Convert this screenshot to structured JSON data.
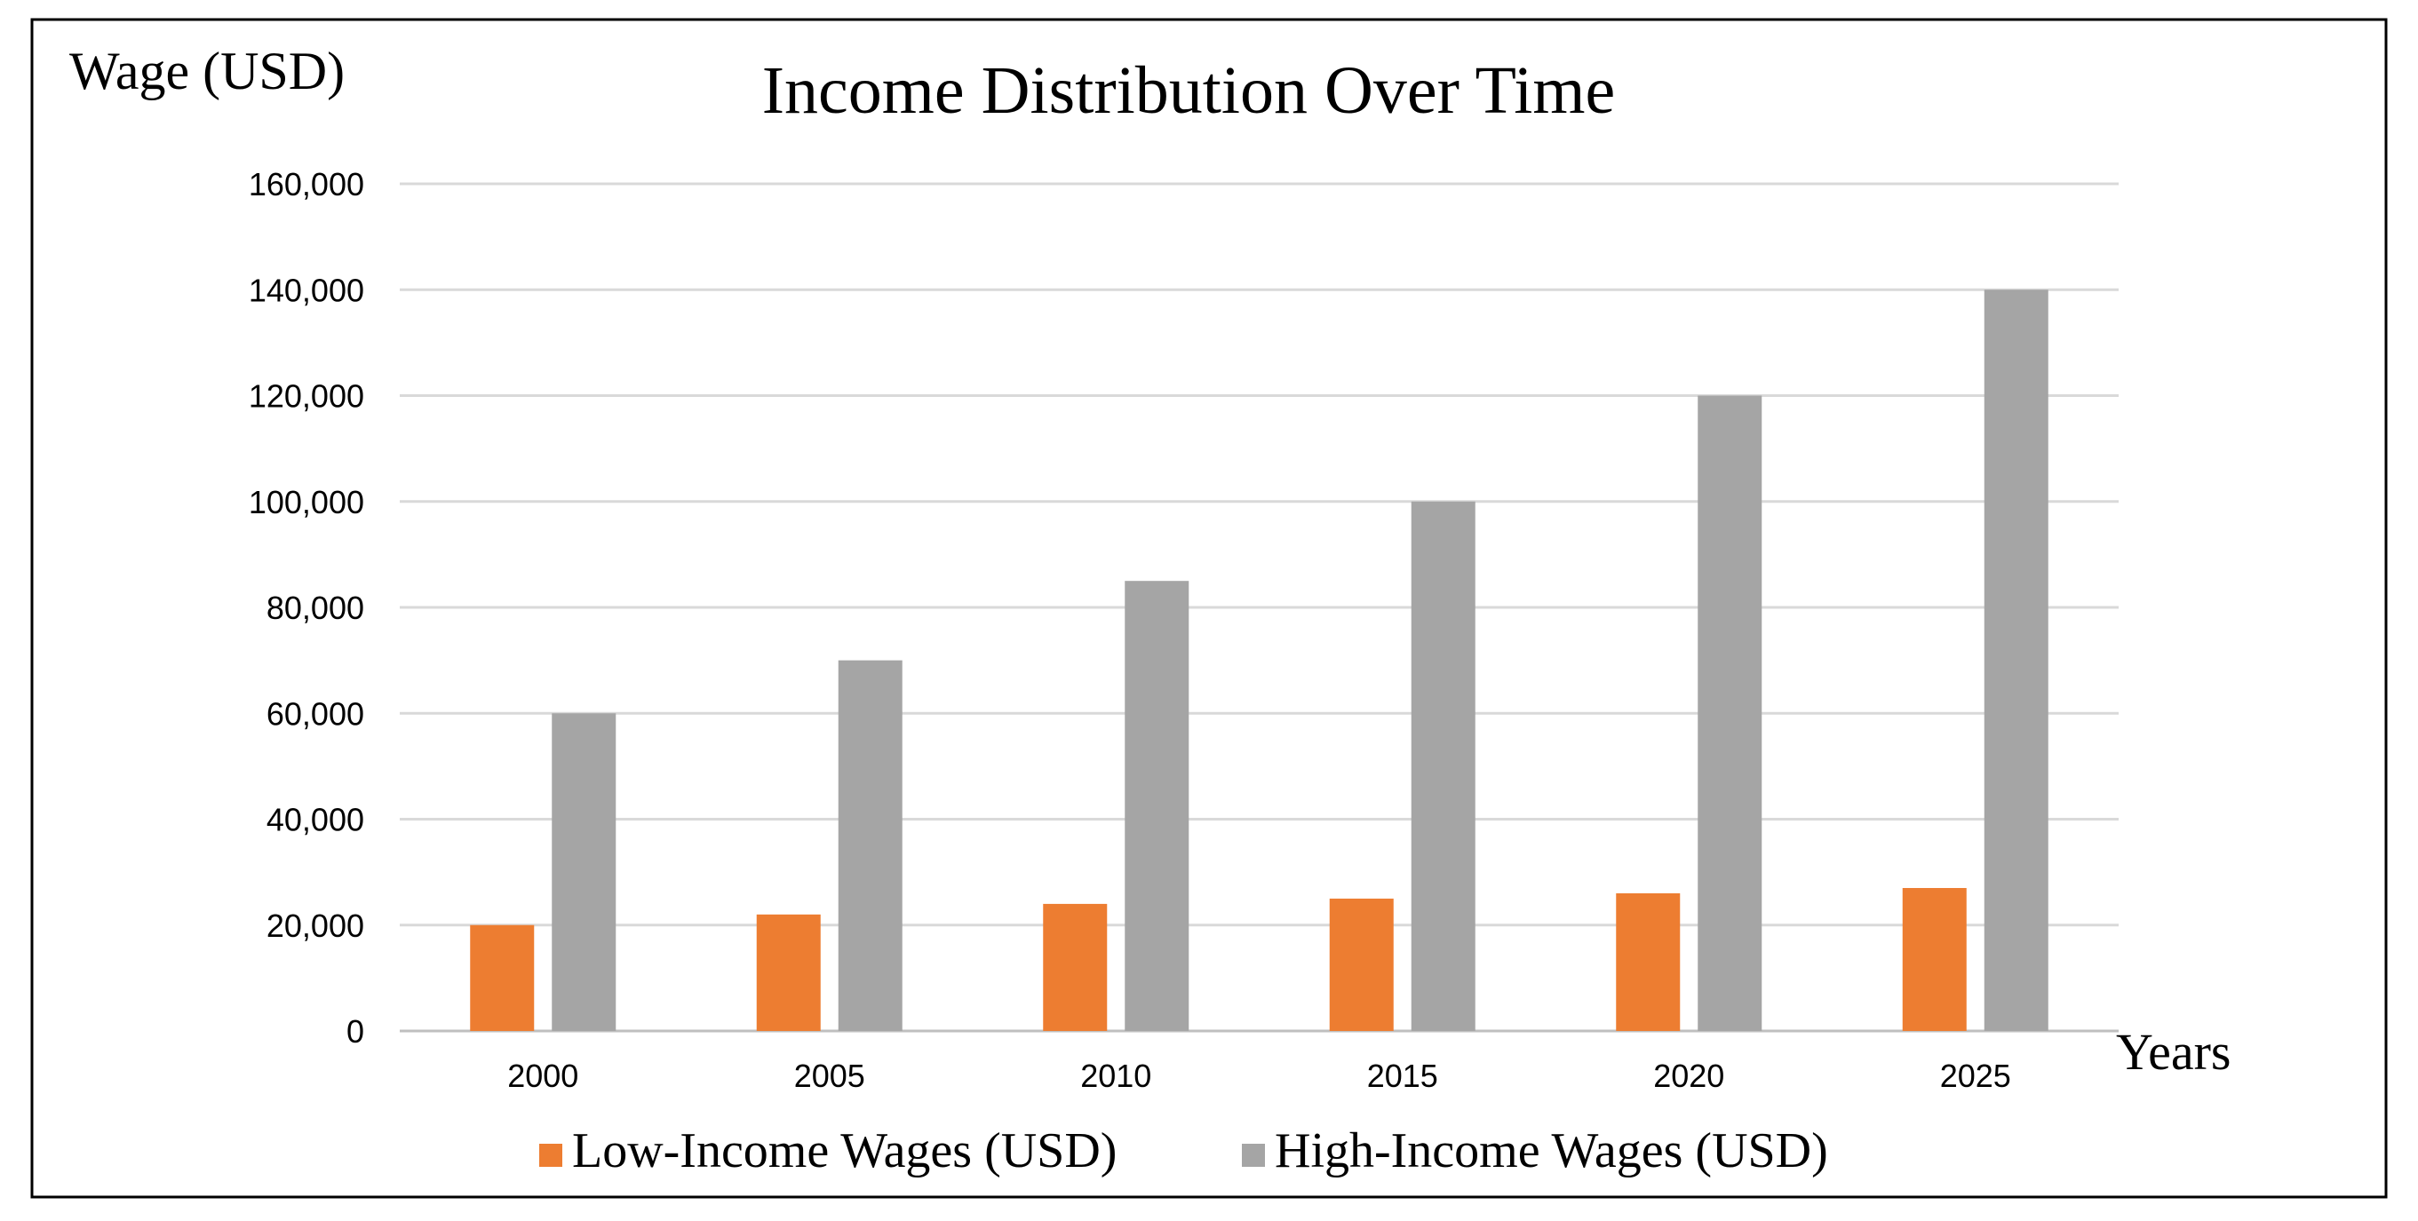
{
  "chart_data": {
    "type": "bar",
    "title": "Income Distribution Over Time",
    "ylabel": "Wage (USD)",
    "xlabel": "Years",
    "categories": [
      "2000",
      "2005",
      "2010",
      "2015",
      "2020",
      "2025"
    ],
    "series": [
      {
        "name": "Low-Income Wages (USD)",
        "values": [
          20000,
          22000,
          24000,
          25000,
          26000,
          27000
        ],
        "color": "#ED7D31"
      },
      {
        "name": "High-Income Wages (USD)",
        "values": [
          60000,
          70000,
          85000,
          100000,
          120000,
          140000
        ],
        "color": "#A5A5A5"
      }
    ],
    "ylim": [
      0,
      160000
    ],
    "yticks": [
      0,
      20000,
      40000,
      60000,
      80000,
      100000,
      120000,
      140000,
      160000
    ],
    "ytick_labels": [
      "0",
      "20,000",
      "40,000",
      "60,000",
      "80,000",
      "100,000",
      "120,000",
      "140,000",
      "160,000"
    ],
    "grid": true,
    "legend_position": "bottom"
  }
}
